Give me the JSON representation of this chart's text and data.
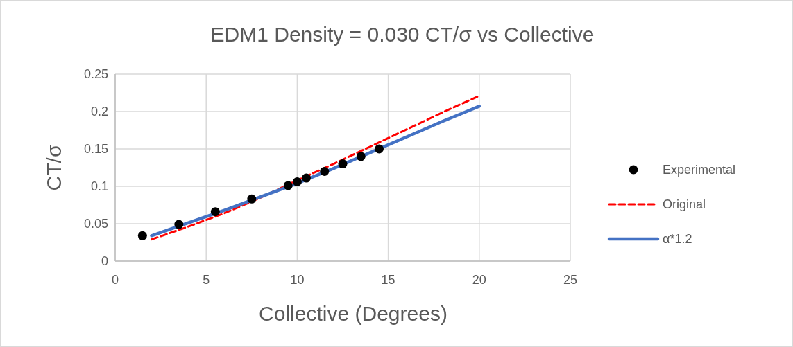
{
  "chart_data": {
    "type": "line",
    "title": "EDM1 Density = 0.030 CT/σ vs Collective",
    "xlabel": "Collective (Degrees)",
    "ylabel": "CT/σ",
    "xlim": [
      0,
      25
    ],
    "xticks": [
      0,
      5,
      10,
      15,
      20,
      25
    ],
    "ylim": [
      0,
      0.25
    ],
    "yticks": [
      0,
      0.05,
      0.1,
      0.15,
      0.2,
      0.25
    ],
    "grid": true,
    "legend": "right",
    "series": [
      {
        "name": "Experimental",
        "type": "scatter",
        "marker": "circle",
        "color": "#000000",
        "x": [
          1.5,
          3.5,
          5.5,
          7.5,
          9.5,
          10,
          10.5,
          11.5,
          12.5,
          13.5,
          14.5
        ],
        "values": [
          0.034,
          0.049,
          0.066,
          0.083,
          0.101,
          0.106,
          0.111,
          0.12,
          0.13,
          0.14,
          0.15
        ]
      },
      {
        "name": "Original",
        "line_style": "dashed",
        "color": "#ff0000",
        "x": [
          2,
          4,
          6,
          8,
          10,
          12,
          14,
          16,
          18,
          20
        ],
        "values": [
          0.029,
          0.046,
          0.064,
          0.085,
          0.108,
          0.13,
          0.153,
          0.176,
          0.199,
          0.221
        ]
      },
      {
        "name": "α*1.2",
        "line_style": "solid",
        "color": "#4472c4",
        "x": [
          2,
          4,
          6,
          8,
          10,
          12,
          14,
          16,
          18,
          19,
          20
        ],
        "values": [
          0.034,
          0.051,
          0.068,
          0.086,
          0.104,
          0.124,
          0.145,
          0.166,
          0.187,
          0.197,
          0.207
        ]
      }
    ]
  }
}
